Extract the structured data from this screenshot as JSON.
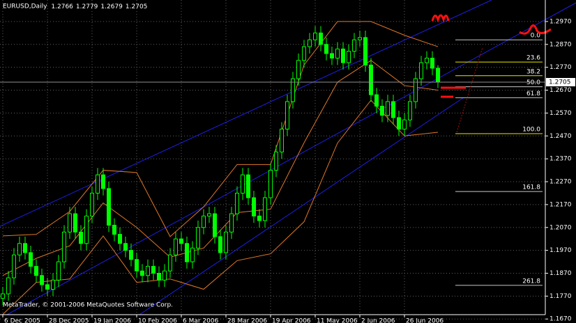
{
  "chart_data": {
    "type": "candlestick",
    "title": "EURUSD,Daily",
    "footer": "MetaTrader, © 2001-2006 MetaQuotes Software Corp.",
    "color": "#00ff00",
    "open": [
      1.176,
      1.178,
      1.185,
      1.195,
      1.2,
      1.196,
      1.19,
      1.186,
      1.182,
      1.18,
      1.184,
      1.192,
      1.205,
      1.213,
      1.205,
      1.2,
      1.212,
      1.222,
      1.23,
      1.224,
      1.208,
      1.204,
      1.2,
      1.197,
      1.193,
      1.188,
      1.186,
      1.19,
      1.187,
      1.184,
      1.188,
      1.195,
      1.202,
      1.2,
      1.192,
      1.198,
      1.207,
      1.212,
      1.213,
      1.203,
      1.196,
      1.205,
      1.213,
      1.222,
      1.23,
      1.22,
      1.212,
      1.21,
      1.22,
      1.232,
      1.24,
      1.25,
      1.262,
      1.272,
      1.28,
      1.286,
      1.289,
      1.292,
      1.287,
      1.283,
      1.281,
      1.285,
      1.279,
      1.284,
      1.289,
      1.29,
      1.278,
      1.265,
      1.26,
      1.256,
      1.262,
      1.255,
      1.25,
      1.254,
      1.262,
      1.272,
      1.279,
      1.281,
      1.2766
    ],
    "high": [
      1.181,
      1.188,
      1.198,
      1.203,
      1.203,
      1.199,
      1.193,
      1.189,
      1.185,
      1.187,
      1.195,
      1.208,
      1.216,
      1.216,
      1.208,
      1.215,
      1.225,
      1.233,
      1.233,
      1.227,
      1.211,
      1.207,
      1.203,
      1.2,
      1.196,
      1.191,
      1.193,
      1.193,
      1.19,
      1.191,
      1.198,
      1.205,
      1.205,
      1.203,
      1.201,
      1.21,
      1.215,
      1.216,
      1.216,
      1.206,
      1.208,
      1.216,
      1.225,
      1.233,
      1.233,
      1.223,
      1.215,
      1.223,
      1.235,
      1.243,
      1.253,
      1.265,
      1.275,
      1.283,
      1.289,
      1.292,
      1.295,
      1.295,
      1.29,
      1.286,
      1.288,
      1.288,
      1.287,
      1.292,
      1.293,
      1.293,
      1.281,
      1.268,
      1.263,
      1.265,
      1.265,
      1.258,
      1.257,
      1.265,
      1.275,
      1.282,
      1.284,
      1.284,
      1.2779
    ],
    "low": [
      1.173,
      1.175,
      1.182,
      1.192,
      1.193,
      1.187,
      1.183,
      1.179,
      1.177,
      1.177,
      1.181,
      1.189,
      1.202,
      1.202,
      1.197,
      1.197,
      1.209,
      1.219,
      1.221,
      1.205,
      1.201,
      1.197,
      1.194,
      1.19,
      1.185,
      1.183,
      1.183,
      1.184,
      1.181,
      1.181,
      1.185,
      1.192,
      1.197,
      1.189,
      1.189,
      1.195,
      1.204,
      1.209,
      1.2,
      1.193,
      1.193,
      1.202,
      1.21,
      1.219,
      1.217,
      1.209,
      1.207,
      1.207,
      1.217,
      1.229,
      1.237,
      1.247,
      1.259,
      1.269,
      1.277,
      1.283,
      1.286,
      1.284,
      1.28,
      1.278,
      1.278,
      1.276,
      1.276,
      1.281,
      1.286,
      1.275,
      1.262,
      1.257,
      1.253,
      1.253,
      1.252,
      1.247,
      1.247,
      1.251,
      1.259,
      1.269,
      1.276,
      1.2736,
      1.2679
    ],
    "close": [
      1.178,
      1.185,
      1.195,
      1.2,
      1.196,
      1.19,
      1.186,
      1.182,
      1.18,
      1.184,
      1.192,
      1.205,
      1.213,
      1.205,
      1.2,
      1.212,
      1.222,
      1.23,
      1.224,
      1.208,
      1.204,
      1.2,
      1.197,
      1.193,
      1.188,
      1.186,
      1.19,
      1.187,
      1.184,
      1.188,
      1.195,
      1.202,
      1.2,
      1.192,
      1.198,
      1.207,
      1.212,
      1.213,
      1.203,
      1.196,
      1.205,
      1.213,
      1.222,
      1.23,
      1.22,
      1.212,
      1.21,
      1.22,
      1.232,
      1.24,
      1.25,
      1.262,
      1.272,
      1.28,
      1.286,
      1.289,
      1.292,
      1.287,
      1.283,
      1.281,
      1.285,
      1.279,
      1.284,
      1.289,
      1.29,
      1.278,
      1.265,
      1.26,
      1.256,
      1.262,
      1.255,
      1.25,
      1.254,
      1.262,
      1.272,
      1.279,
      1.281,
      1.2766,
      1.2705
    ],
    "xlim": [
      -0.5,
      97.25
    ],
    "xticks": [
      {
        "value": 0,
        "label": "6 Dec 2005"
      },
      {
        "value": 8,
        "label": "28 Dec 2005"
      },
      {
        "value": 16,
        "label": "19 Jan 2006"
      },
      {
        "value": 24,
        "label": "10 Feb 2006"
      },
      {
        "value": 32,
        "label": "6 Mar 2006"
      },
      {
        "value": 40,
        "label": "28 Mar 2006"
      },
      {
        "value": 48,
        "label": "19 Apr 2006"
      },
      {
        "value": 56,
        "label": "11 May 2006"
      },
      {
        "value": 64,
        "label": "2 Jun 2006"
      },
      {
        "value": 72,
        "label": "26 Jun 2006"
      }
    ],
    "ylim": [
      1.1689,
      1.3064
    ],
    "yticks": [
      {
        "value": 1.297,
        "label": "1.2970"
      },
      {
        "value": 1.287,
        "label": "1.2870"
      },
      {
        "value": 1.277,
        "label": "1.2770"
      },
      {
        "value": 1.267,
        "label": "1.2670"
      },
      {
        "value": 1.257,
        "label": "1.2570"
      },
      {
        "value": 1.247,
        "label": "1.2470"
      },
      {
        "value": 1.237,
        "label": "1.2370"
      },
      {
        "value": 1.227,
        "label": "1.2270"
      },
      {
        "value": 1.217,
        "label": "1.2170"
      },
      {
        "value": 1.207,
        "label": "1.2070"
      },
      {
        "value": 1.197,
        "label": "1.1970"
      },
      {
        "value": 1.187,
        "label": "1.1870"
      },
      {
        "value": 1.177,
        "label": "1.1770"
      },
      {
        "value": 1.167,
        "label": "1.1670"
      }
    ],
    "grid": true,
    "bands": {
      "color": "#e07828",
      "x": [
        0,
        6,
        12,
        18,
        24,
        30,
        36,
        42,
        48,
        54,
        60,
        66,
        72,
        78
      ],
      "upper": [
        1.2033,
        1.204,
        1.214,
        1.232,
        1.231,
        1.203,
        1.216,
        1.2345,
        1.2345,
        1.278,
        1.297,
        1.297,
        1.291,
        1.286
      ],
      "middle": [
        1.186,
        1.1935,
        1.199,
        1.2177,
        1.207,
        1.194,
        1.198,
        1.2135,
        1.215,
        1.244,
        1.2705,
        1.28,
        1.269,
        1.267
      ],
      "lower": [
        1.169,
        1.183,
        1.1845,
        1.2033,
        1.183,
        1.1845,
        1.18,
        1.1925,
        1.1955,
        1.2095,
        1.2439,
        1.2626,
        1.247,
        1.2486
      ]
    },
    "fibonacci": [
      {
        "value": 0,
        "label": "0.0",
        "price": 1.289,
        "color": "#c8c8c8"
      },
      {
        "value": 23.6,
        "price": 1.2793,
        "color": "#e8e800"
      },
      {
        "value": 38.2,
        "price": 1.2733,
        "color": "#e8e800"
      },
      {
        "value": 50,
        "label": "50.0",
        "price": 1.2685,
        "color": "#c8c8c8"
      },
      {
        "value": 61.8,
        "price": 1.2637,
        "color": "#c8c8c8"
      },
      {
        "value": 100,
        "label": "100.0",
        "price": 1.248,
        "color": "#e8e800"
      },
      {
        "value": 161.8,
        "price": 1.2227,
        "color": "#c8c8c8"
      },
      {
        "value": 261.8,
        "price": 1.1817,
        "color": "#c8c8c8"
      }
    ]
  }
}
